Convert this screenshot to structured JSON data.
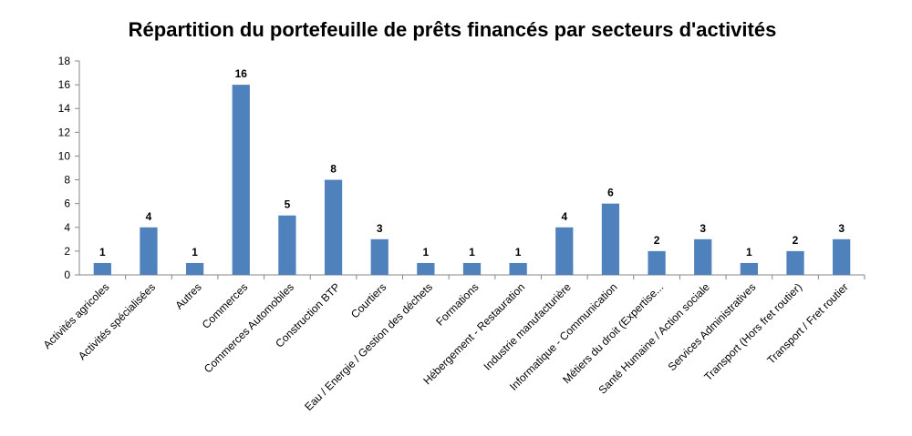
{
  "chart_data": {
    "type": "bar",
    "title": "Répartition du portefeuille de prêts financés par secteurs d'activités",
    "xlabel": "",
    "ylabel": "",
    "ylim": [
      0,
      18
    ],
    "yticks": [
      0,
      2,
      4,
      6,
      8,
      10,
      12,
      14,
      16,
      18
    ],
    "grid": false,
    "legend": "none",
    "bar_color": "#4f81bd",
    "categories": [
      "Activités agricoles",
      "Activités spécialisées",
      "Autres",
      "Commerces",
      "Commerces Automobiles",
      "Construction BTP",
      "Courtiers",
      "Eau / Energie / Gestion des déchets",
      "Formations",
      "Hébergement - Restauration",
      "Industrie manufacturière",
      "Informatique - Communication",
      "Métiers du droit (Expertise...",
      "Santé Humaine / Action sociale",
      "Services Administratives",
      "Transport (Hors fret routier)",
      "Transport / Fret routier"
    ],
    "values": [
      1,
      4,
      1,
      16,
      5,
      8,
      3,
      1,
      1,
      1,
      4,
      6,
      2,
      3,
      1,
      2,
      3
    ],
    "data_labels": [
      "1",
      "4",
      "1",
      "16",
      "5",
      "8",
      "3",
      "1",
      "1",
      "1",
      "4",
      "6",
      "2",
      "3",
      "1",
      "2",
      "3"
    ]
  }
}
